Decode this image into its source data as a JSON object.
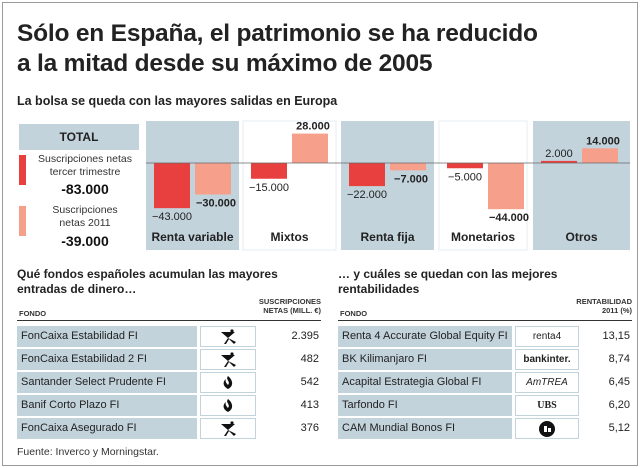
{
  "header": {
    "title_line1": "Sólo en España, el patrimonio se ha reducido",
    "title_line2": "a la mitad desde su máximo de 2005",
    "subtitle": "La bolsa se queda con las mayores salidas en Europa"
  },
  "legend": {
    "total_label": "TOTAL",
    "item1_line1": "Suscripciones netas",
    "item1_line2": "tercer trimestre",
    "item1_value": "-83.000",
    "item2_line1": "Suscripciones",
    "item2_line2": "netas 2011",
    "item2_value": "-39.000",
    "color_q3": "#e8403e",
    "color_2011": "#f6a08c"
  },
  "chart_data": {
    "type": "bar",
    "categories": [
      "Renta variable",
      "Mixtos",
      "Renta fija",
      "Monetarios",
      "Otros"
    ],
    "series": [
      {
        "name": "Suscripciones netas tercer trimestre",
        "values": [
          -43000,
          -15000,
          -22000,
          -5000,
          2000
        ],
        "labels": [
          "−43.000",
          "−15.000",
          "−22.000",
          "−5.000",
          "2.000"
        ]
      },
      {
        "name": "Suscripciones netas 2011",
        "values": [
          -30000,
          28000,
          -7000,
          -44000,
          14000
        ],
        "labels": [
          "−30.000",
          "28.000",
          "−7.000",
          "−44.000",
          "14.000"
        ]
      }
    ],
    "colors": [
      "#e8403e",
      "#f6a08c"
    ],
    "band_color": "#c3d3dc"
  },
  "left_table": {
    "title_line1": "Qué fondos españoles acumulan las mayores",
    "title_line2": "entradas de dinero…",
    "col_fund": "FONDO",
    "col_value_line1": "SUSCRIPCIONES",
    "col_value_line2": "NETAS (MILL. €)",
    "rows": [
      {
        "name": "FonCaixa Estabilidad FI",
        "logo": "la-caixa-star-icon",
        "value": "2.395"
      },
      {
        "name": "FonCaixa Estabilidad 2 FI",
        "logo": "la-caixa-star-icon",
        "value": "482"
      },
      {
        "name": "Santander Select Prudente FI",
        "logo": "santander-flame-icon",
        "value": "542"
      },
      {
        "name": "Banif Corto Plazo FI",
        "logo": "santander-flame-icon",
        "value": "413"
      },
      {
        "name": "FonCaixa Asegurado FI",
        "logo": "la-caixa-star-icon",
        "value": "376"
      }
    ]
  },
  "right_table": {
    "title_line1": "… y cuáles se quedan con las mejores",
    "title_line2": "rentabilidades",
    "col_fund": "FONDO",
    "col_value_line1": "RENTABILIDAD",
    "col_value_line2": "2011 (%)",
    "rows": [
      {
        "name": "Renta 4 Accurate Global Equity FI",
        "logo_text": "renta4",
        "value": "13,15"
      },
      {
        "name": "BK Kilimanjaro FI",
        "logo_text": "bankinter.",
        "value": "8,74"
      },
      {
        "name": "Acapital Estrategia Global FI",
        "logo_text": "AmTREA",
        "value": "6,45"
      },
      {
        "name": "Tarfondo FI",
        "logo_text": "UBS",
        "value": "6,20"
      },
      {
        "name": "CAM Mundial Bonos FI",
        "logo": "cam-circle-icon",
        "value": "5,12"
      }
    ]
  },
  "source": "Fuente: Inverco y Morningstar."
}
